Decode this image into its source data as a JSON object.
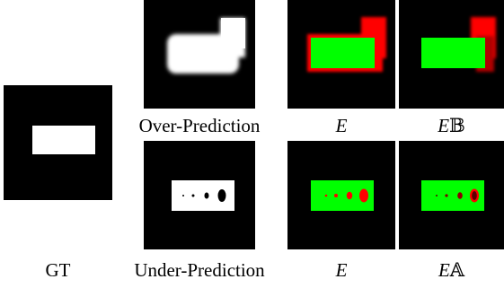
{
  "captions": {
    "gt_bottom": "GT",
    "over_prediction": "Over-Prediction",
    "under_prediction": "Under-Prediction",
    "E_top": "E",
    "EB_top_E": "E",
    "EB_top_B": "𝔹",
    "E_bottom": "E",
    "EA_bottom_E": "E",
    "EA_bottom_A": "𝔸"
  },
  "colors": {
    "background": "#000000",
    "mask": "#ffffff",
    "correct": "#00ff00",
    "error": "#ff0000"
  }
}
